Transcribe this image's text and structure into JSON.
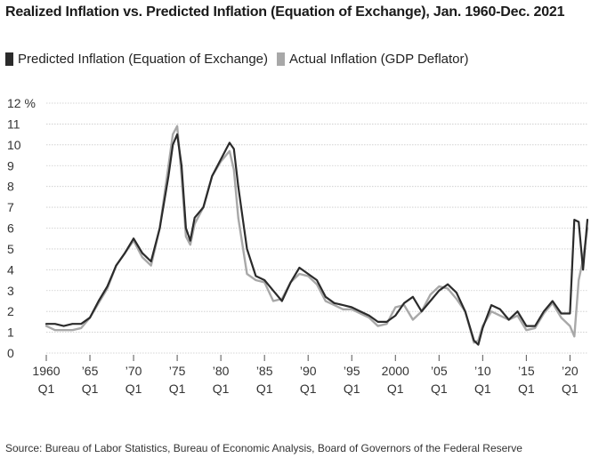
{
  "title": "Realized Inflation vs. Predicted Inflation (Equation of Exchange), Jan. 1960-Dec. 2021",
  "legend": [
    {
      "label": "Predicted Inflation (Equation of Exchange)",
      "color": "#2b2b2b"
    },
    {
      "label": "Actual Inflation (GDP Deflator)",
      "color": "#a8a8a8"
    }
  ],
  "source": "Source: Bureau of Labor Statistics, Bureau of Economic Analysis, Board of Governors of the Federal Reserve",
  "chart_data": {
    "type": "line",
    "y_top_label": "12 %",
    "ylim": [
      0,
      12
    ],
    "xlim": [
      1960,
      2022
    ],
    "grid": true,
    "legend_position": "top-left",
    "yticks": [
      0,
      1,
      2,
      3,
      4,
      5,
      6,
      7,
      8,
      9,
      10,
      11,
      12
    ],
    "ytick_labels": [
      "0",
      "1",
      "2",
      "3",
      "4",
      "5",
      "6",
      "7",
      "8",
      "9",
      "10",
      "11",
      "12 %"
    ],
    "xticks": [
      {
        "x": 1960,
        "top": "1960",
        "bottom": "Q1"
      },
      {
        "x": 1965,
        "top": "’65",
        "bottom": "Q1"
      },
      {
        "x": 1970,
        "top": "’70",
        "bottom": "Q1"
      },
      {
        "x": 1975,
        "top": "’75",
        "bottom": "Q1"
      },
      {
        "x": 1980,
        "top": "’80",
        "bottom": "Q1"
      },
      {
        "x": 1985,
        "top": "’85",
        "bottom": "Q1"
      },
      {
        "x": 1990,
        "top": "’90",
        "bottom": "Q1"
      },
      {
        "x": 1995,
        "top": "’95",
        "bottom": "Q1"
      },
      {
        "x": 2000,
        "top": "2000",
        "bottom": "Q1"
      },
      {
        "x": 2005,
        "top": "’05",
        "bottom": "Q1"
      },
      {
        "x": 2010,
        "top": "’10",
        "bottom": "Q1"
      },
      {
        "x": 2015,
        "top": "’15",
        "bottom": "Q1"
      },
      {
        "x": 2020,
        "top": "’20",
        "bottom": "Q1"
      }
    ],
    "series": [
      {
        "name": "Predicted Inflation (Equation of Exchange)",
        "color": "#2b2b2b",
        "points": [
          [
            1960,
            1.4
          ],
          [
            1961,
            1.4
          ],
          [
            1962,
            1.3
          ],
          [
            1963,
            1.4
          ],
          [
            1964,
            1.4
          ],
          [
            1965,
            1.7
          ],
          [
            1966,
            2.5
          ],
          [
            1967,
            3.2
          ],
          [
            1968,
            4.2
          ],
          [
            1969,
            4.8
          ],
          [
            1970,
            5.5
          ],
          [
            1971,
            4.8
          ],
          [
            1972,
            4.4
          ],
          [
            1973,
            6.0
          ],
          [
            1974,
            8.5
          ],
          [
            1974.5,
            10.0
          ],
          [
            1975,
            10.5
          ],
          [
            1975.5,
            9.0
          ],
          [
            1976,
            6.0
          ],
          [
            1976.5,
            5.4
          ],
          [
            1977,
            6.5
          ],
          [
            1978,
            7.0
          ],
          [
            1979,
            8.5
          ],
          [
            1980,
            9.3
          ],
          [
            1981,
            10.1
          ],
          [
            1981.5,
            9.8
          ],
          [
            1982,
            8.0
          ],
          [
            1983,
            5.0
          ],
          [
            1984,
            3.7
          ],
          [
            1985,
            3.5
          ],
          [
            1986,
            3.0
          ],
          [
            1987,
            2.5
          ],
          [
            1988,
            3.4
          ],
          [
            1989,
            4.1
          ],
          [
            1990,
            3.8
          ],
          [
            1991,
            3.5
          ],
          [
            1992,
            2.7
          ],
          [
            1993,
            2.4
          ],
          [
            1994,
            2.3
          ],
          [
            1995,
            2.2
          ],
          [
            1996,
            2.0
          ],
          [
            1997,
            1.8
          ],
          [
            1998,
            1.5
          ],
          [
            1999,
            1.5
          ],
          [
            2000,
            1.8
          ],
          [
            2001,
            2.4
          ],
          [
            2002,
            2.7
          ],
          [
            2003,
            2.0
          ],
          [
            2004,
            2.5
          ],
          [
            2005,
            3.0
          ],
          [
            2006,
            3.3
          ],
          [
            2007,
            2.9
          ],
          [
            2008,
            2.0
          ],
          [
            2009,
            0.6
          ],
          [
            2009.5,
            0.4
          ],
          [
            2010,
            1.2
          ],
          [
            2011,
            2.3
          ],
          [
            2012,
            2.1
          ],
          [
            2013,
            1.6
          ],
          [
            2014,
            2.0
          ],
          [
            2015,
            1.3
          ],
          [
            2016,
            1.3
          ],
          [
            2017,
            2.0
          ],
          [
            2018,
            2.5
          ],
          [
            2019,
            1.9
          ],
          [
            2020,
            1.9
          ],
          [
            2020.5,
            6.4
          ],
          [
            2021,
            6.3
          ],
          [
            2021.5,
            4.0
          ],
          [
            2022,
            6.4
          ]
        ]
      },
      {
        "name": "Actual Inflation (GDP Deflator)",
        "color": "#a8a8a8",
        "points": [
          [
            1960,
            1.3
          ],
          [
            1961,
            1.1
          ],
          [
            1962,
            1.1
          ],
          [
            1963,
            1.1
          ],
          [
            1964,
            1.2
          ],
          [
            1965,
            1.7
          ],
          [
            1966,
            2.4
          ],
          [
            1967,
            3.1
          ],
          [
            1968,
            4.2
          ],
          [
            1969,
            4.8
          ],
          [
            1970,
            5.4
          ],
          [
            1971,
            4.6
          ],
          [
            1972,
            4.2
          ],
          [
            1973,
            6.0
          ],
          [
            1974,
            9.0
          ],
          [
            1974.5,
            10.5
          ],
          [
            1975,
            10.9
          ],
          [
            1975.5,
            8.5
          ],
          [
            1976,
            5.6
          ],
          [
            1976.5,
            5.2
          ],
          [
            1977,
            6.2
          ],
          [
            1978,
            7.0
          ],
          [
            1979,
            8.5
          ],
          [
            1980,
            9.2
          ],
          [
            1981,
            9.7
          ],
          [
            1981.5,
            8.8
          ],
          [
            1982,
            6.5
          ],
          [
            1983,
            3.8
          ],
          [
            1984,
            3.5
          ],
          [
            1985,
            3.4
          ],
          [
            1986,
            2.5
          ],
          [
            1987,
            2.6
          ],
          [
            1988,
            3.4
          ],
          [
            1989,
            3.8
          ],
          [
            1990,
            3.7
          ],
          [
            1991,
            3.3
          ],
          [
            1992,
            2.5
          ],
          [
            1993,
            2.3
          ],
          [
            1994,
            2.1
          ],
          [
            1995,
            2.1
          ],
          [
            1996,
            1.9
          ],
          [
            1997,
            1.7
          ],
          [
            1998,
            1.3
          ],
          [
            1999,
            1.4
          ],
          [
            2000,
            2.2
          ],
          [
            2001,
            2.3
          ],
          [
            2002,
            1.6
          ],
          [
            2003,
            2.0
          ],
          [
            2004,
            2.8
          ],
          [
            2005,
            3.2
          ],
          [
            2006,
            3.1
          ],
          [
            2007,
            2.6
          ],
          [
            2008,
            2.0
          ],
          [
            2009,
            0.5
          ],
          [
            2009.5,
            0.6
          ],
          [
            2010,
            1.3
          ],
          [
            2011,
            2.0
          ],
          [
            2012,
            1.8
          ],
          [
            2013,
            1.6
          ],
          [
            2014,
            1.8
          ],
          [
            2015,
            1.1
          ],
          [
            2016,
            1.2
          ],
          [
            2017,
            1.9
          ],
          [
            2018,
            2.4
          ],
          [
            2019,
            1.7
          ],
          [
            2020,
            1.3
          ],
          [
            2020.5,
            0.8
          ],
          [
            2021,
            3.5
          ],
          [
            2021.5,
            4.5
          ],
          [
            2022,
            6.0
          ]
        ]
      }
    ]
  }
}
